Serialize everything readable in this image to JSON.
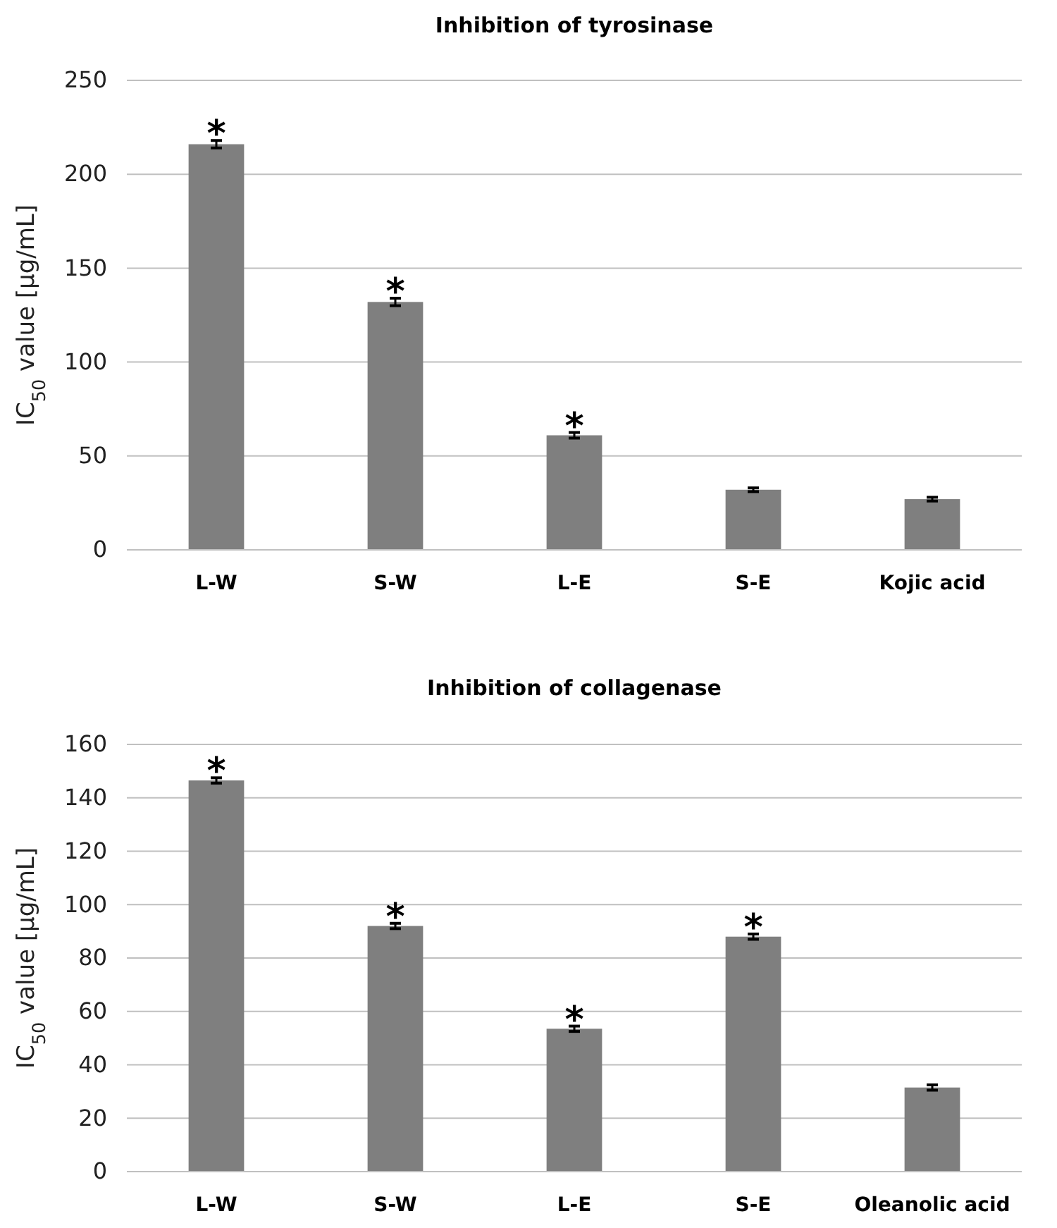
{
  "chart_data": [
    {
      "type": "bar",
      "title": "Inhibition of tyrosinase",
      "ylabel": "IC$_{50}$ value [µg/mL]",
      "categories": [
        "L-W",
        "S-W",
        "L-E",
        "S-E",
        "Kojic acid"
      ],
      "values": [
        216,
        132,
        61,
        32,
        27
      ],
      "errors": [
        2,
        2,
        1.5,
        1,
        1
      ],
      "color": "#7f7f7f",
      "ylim": [
        0,
        250
      ],
      "yticks": [
        0,
        50,
        100,
        150,
        200,
        250
      ],
      "grid": "y",
      "annotations": [
        {
          "text": "*",
          "x": "L-W",
          "y": 218
        },
        {
          "text": "*",
          "x": "S-W",
          "y": 134
        },
        {
          "text": "*",
          "x": "L-E",
          "y": 62.5
        }
      ]
    },
    {
      "type": "bar",
      "title": "Inhibition of collagenase",
      "ylabel": "IC$_{50}$ value [µg/mL]",
      "categories": [
        "L-W",
        "S-W",
        "L-E",
        "S-E",
        "Oleanolic acid"
      ],
      "values": [
        146.5,
        92,
        53.5,
        88,
        31.5
      ],
      "errors": [
        1,
        1,
        1,
        1,
        1
      ],
      "color": "#7f7f7f",
      "ylim": [
        0,
        160
      ],
      "yticks": [
        0,
        20,
        40,
        60,
        80,
        100,
        120,
        140,
        160
      ],
      "grid": "y",
      "annotations": [
        {
          "text": "*",
          "x": "L-W",
          "y": 147.5
        },
        {
          "text": "*",
          "x": "S-W",
          "y": 93
        },
        {
          "text": "*",
          "x": "L-E",
          "y": 54.5
        },
        {
          "text": "*",
          "x": "S-E",
          "y": 89
        }
      ]
    }
  ]
}
